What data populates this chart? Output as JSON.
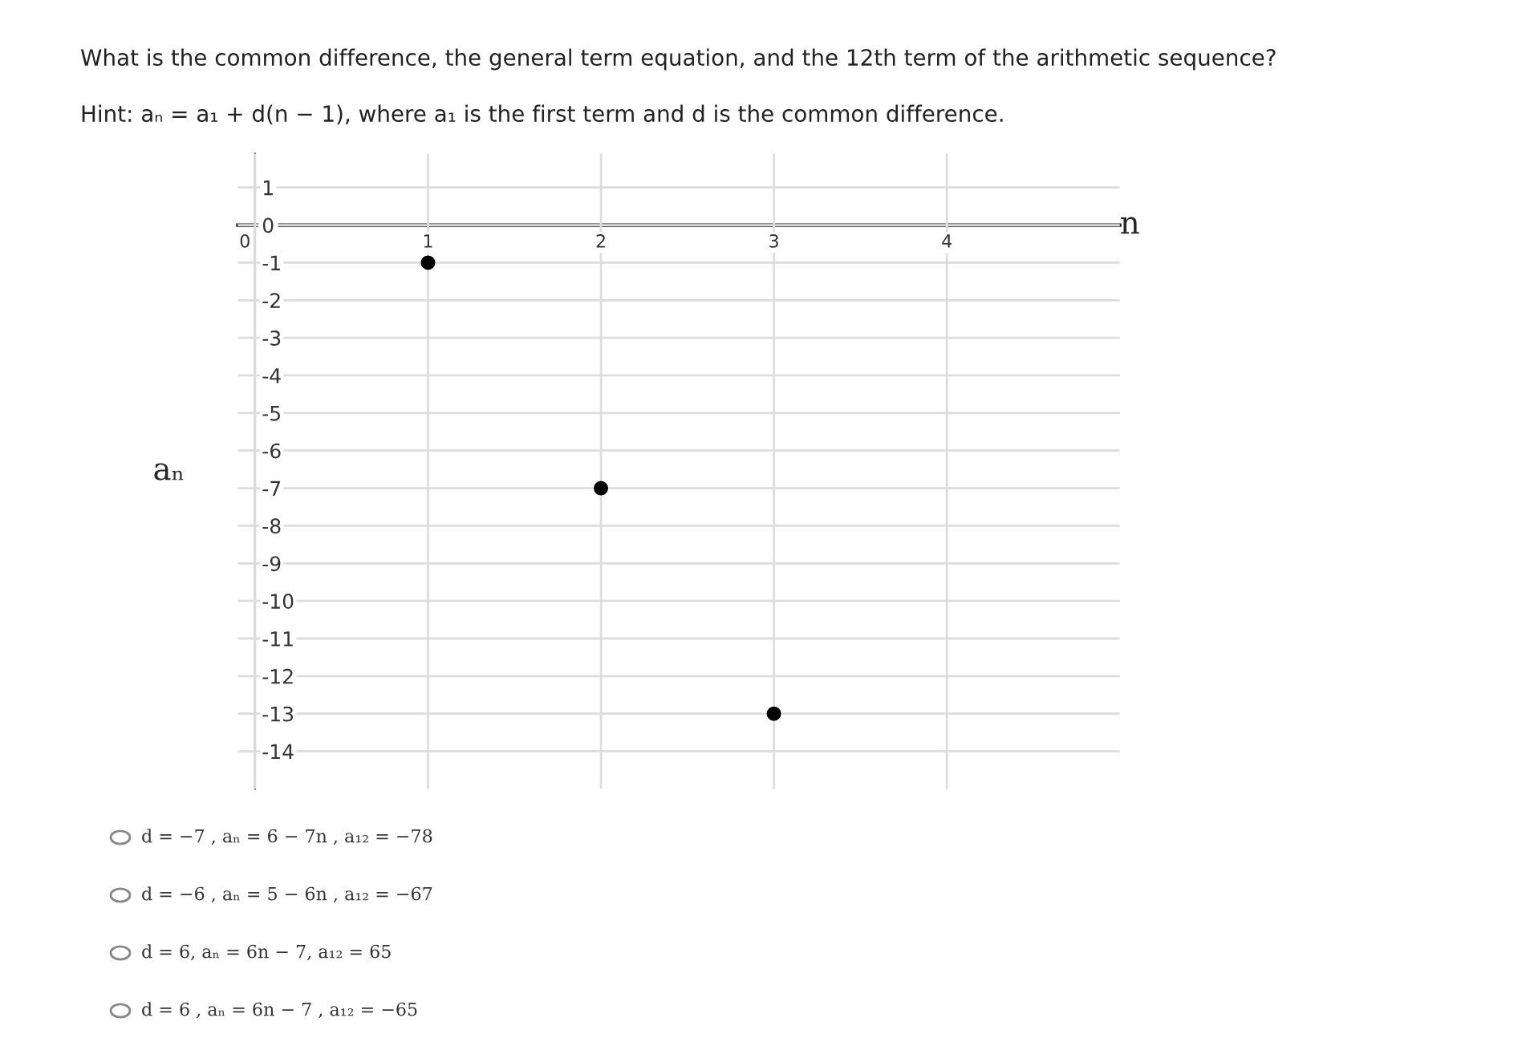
{
  "chart_data": {
    "type": "scatter",
    "title": "What is the common difference, the general term equation, and the 12th term of the arithmetic sequence?",
    "xlabel": "n",
    "ylabel": "aₙ",
    "x": [
      1,
      2,
      3
    ],
    "series": [
      {
        "color": "#000000",
        "values": [
          -1,
          -7,
          -13
        ]
      }
    ],
    "marker": "circle",
    "xlim": [
      -0.1,
      5
    ],
    "xticks": [
      0,
      1,
      2,
      3,
      4
    ],
    "ylim": [
      -15,
      1.9
    ],
    "yticks": [
      1,
      0,
      -1,
      -2,
      -3,
      -4,
      -5,
      -6,
      -7,
      -8,
      -9,
      -10,
      -11,
      -12,
      -13,
      -14
    ],
    "grid": true,
    "annotations": [
      "Hint: aₙ = a₁ + d(n − 1), where a₁ is the first term and d is the common difference.",
      "d = −7 , aₙ = 6 − 7n , a₁₂ = −78",
      "d = −6 , aₙ = 5 − 6n , a₁₂ = −67",
      "d = 6, aₙ = 6n − 7, a₁₂ = 65",
      "d = 6 , aₙ = 6n − 7 , a₁₂ = −65"
    ]
  }
}
